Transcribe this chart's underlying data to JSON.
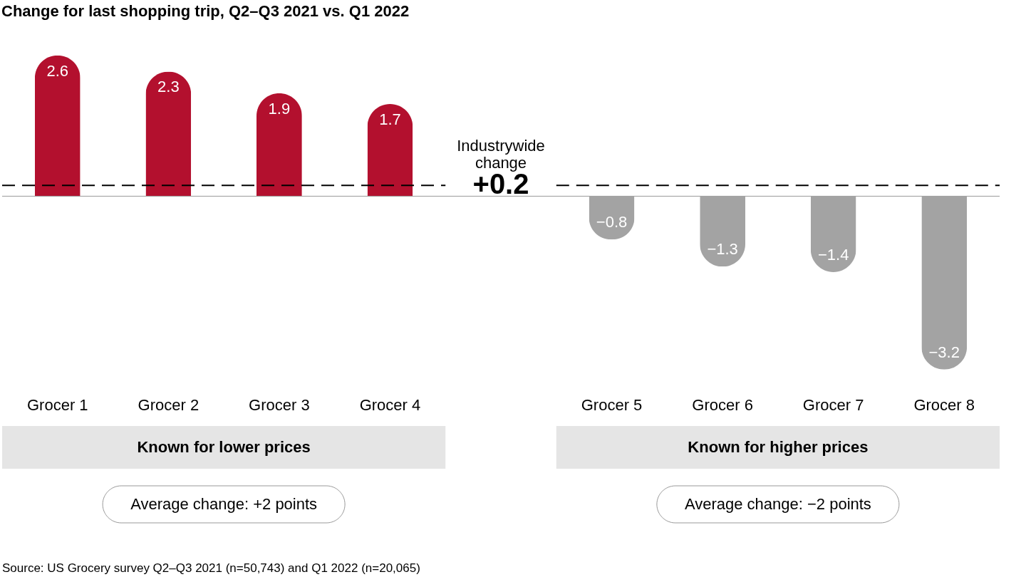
{
  "chart_data": {
    "type": "bar",
    "title": "Change for last shopping trip, Q2–Q3 2021 vs. Q1 2022",
    "categories": [
      "Grocer 1",
      "Grocer 2",
      "Grocer 3",
      "Grocer 4",
      null,
      "Grocer 5",
      "Grocer 6",
      "Grocer 7",
      "Grocer 8"
    ],
    "values": [
      2.6,
      2.3,
      1.9,
      1.7,
      null,
      -0.8,
      -1.3,
      -1.4,
      -3.2
    ],
    "colors": [
      "#b3102e",
      "#b3102e",
      "#b3102e",
      "#b3102e",
      null,
      "#a3a3a3",
      "#a3a3a3",
      "#a3a3a3",
      "#a3a3a3"
    ],
    "data_labels": true,
    "ref_lines": [
      {
        "axis": "y",
        "value": 0.2,
        "label": "Industrywide change +0.2",
        "color": "#000000",
        "line_style": "dashed"
      }
    ],
    "annotations": [
      "Known for lower prices",
      "Known for higher prices",
      "Average change: +2 points",
      "Average change: −2 points",
      "Source: US Grocery survey Q2–Q3 2021 (n=50,743) and Q1 2022 (n=20,065)"
    ],
    "grid": false
  }
}
